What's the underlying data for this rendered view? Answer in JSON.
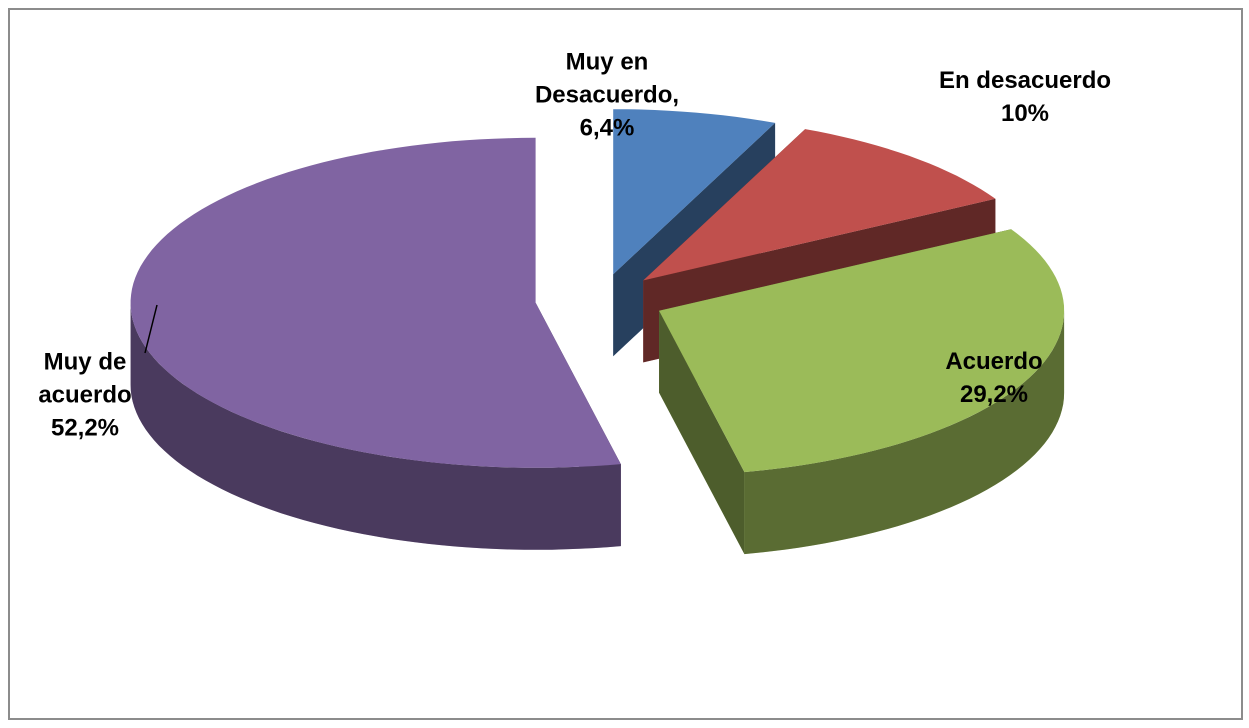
{
  "chart_data": {
    "type": "pie3d",
    "categories": [
      "Muy en Desacuerdo,",
      "En desacuerdo",
      "Acuerdo",
      "Muy de acuerdo"
    ],
    "values": [
      6.4,
      10,
      29.2,
      52.2
    ],
    "value_labels": [
      "6,4%",
      "10%",
      "29,2%",
      "52,2%"
    ],
    "colors": [
      "#4f81bd",
      "#c0504d",
      "#9bbb59",
      "#8064a2"
    ]
  }
}
